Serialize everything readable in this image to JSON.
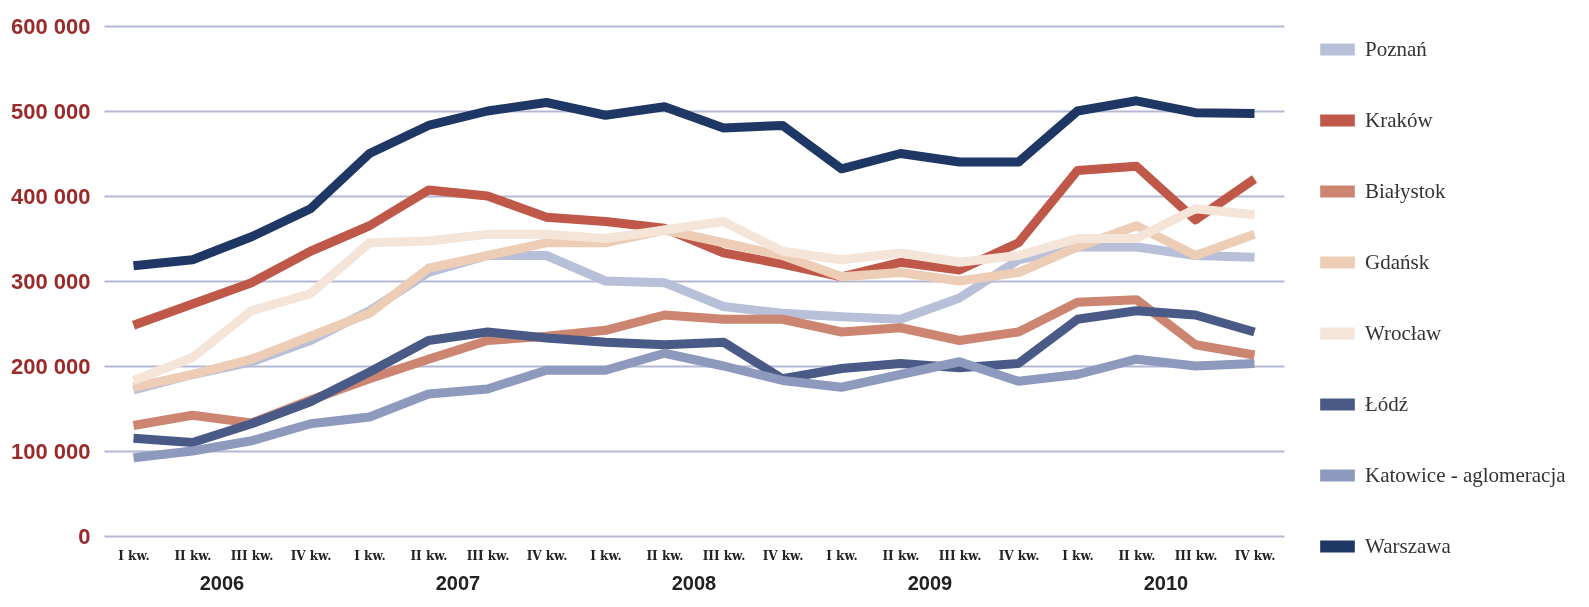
{
  "chart_data": {
    "type": "line",
    "categories": [
      "I kw.",
      "II kw.",
      "III kw.",
      "IV kw.",
      "I kw.",
      "II kw.",
      "III kw.",
      "IV kw.",
      "I kw.",
      "II kw.",
      "III kw.",
      "IV kw.",
      "I kw.",
      "II kw.",
      "III kw.",
      "IV kw.",
      "I kw.",
      "II kw.",
      "III kw.",
      "IV kw."
    ],
    "annotations": [
      "2006",
      "2007",
      "2008",
      "2009",
      "2010"
    ],
    "ylim": [
      0,
      600000
    ],
    "yticks": [
      {
        "value": 0,
        "label": "0"
      },
      {
        "value": 100000,
        "label": "100 000"
      },
      {
        "value": 200000,
        "label": "200 000"
      },
      {
        "value": 300000,
        "label": "300 000"
      },
      {
        "value": 400000,
        "label": "400 000"
      },
      {
        "value": 500000,
        "label": "500 000"
      },
      {
        "value": 600000,
        "label": "600 000"
      }
    ],
    "grid": "y",
    "legend": "right",
    "line_style": "solid",
    "series": [
      {
        "name": "Poznań",
        "color": "#b8bfd8",
        "values": [
          172000,
          190000,
          205000,
          230000,
          265000,
          310000,
          330000,
          330000,
          300000,
          298000,
          270000,
          262000,
          258000,
          255000,
          280000,
          325000,
          340000,
          340000,
          330000,
          328000
        ]
      },
      {
        "name": "Kraków",
        "color": "#c0584a",
        "values": [
          248000,
          273000,
          298000,
          335000,
          365000,
          407000,
          400000,
          375000,
          370000,
          362000,
          333000,
          320000,
          305000,
          322000,
          313000,
          345000,
          430000,
          435000,
          372000,
          420000
        ]
      },
      {
        "name": "Białystok",
        "color": "#cc8570",
        "values": [
          130000,
          142000,
          133000,
          160000,
          185000,
          208000,
          230000,
          235000,
          242000,
          260000,
          255000,
          255000,
          240000,
          245000,
          230000,
          240000,
          275000,
          278000,
          225000,
          213000
        ]
      },
      {
        "name": "Gdańsk",
        "color": "#edcdb5",
        "values": [
          175000,
          190000,
          208000,
          235000,
          262000,
          315000,
          330000,
          345000,
          345000,
          360000,
          345000,
          330000,
          305000,
          310000,
          300000,
          310000,
          340000,
          365000,
          330000,
          355000
        ]
      },
      {
        "name": "Wrocław",
        "color": "#f4e5d8",
        "values": [
          183000,
          210000,
          265000,
          285000,
          345000,
          347000,
          355000,
          355000,
          350000,
          360000,
          370000,
          335000,
          325000,
          333000,
          322000,
          330000,
          350000,
          350000,
          385000,
          378000
        ]
      },
      {
        "name": "Łódź",
        "color": "#4a5a86",
        "values": [
          115000,
          110000,
          132000,
          158000,
          193000,
          230000,
          240000,
          233000,
          228000,
          225000,
          228000,
          185000,
          197000,
          203000,
          198000,
          203000,
          255000,
          265000,
          260000,
          240000
        ]
      },
      {
        "name": "Katowice - aglomeracja",
        "color": "#8d9abd",
        "values": [
          92000,
          100000,
          112000,
          132000,
          140000,
          167000,
          173000,
          195000,
          195000,
          215000,
          200000,
          183000,
          175000,
          190000,
          205000,
          182000,
          190000,
          208000,
          200000,
          203000
        ]
      },
      {
        "name": "Warszawa",
        "color": "#1f3764",
        "values": [
          318000,
          325000,
          352000,
          385000,
          450000,
          483000,
          500000,
          510000,
          495000,
          505000,
          480000,
          483000,
          432000,
          450000,
          440000,
          440000,
          500000,
          512000,
          498000,
          497000
        ]
      }
    ]
  }
}
